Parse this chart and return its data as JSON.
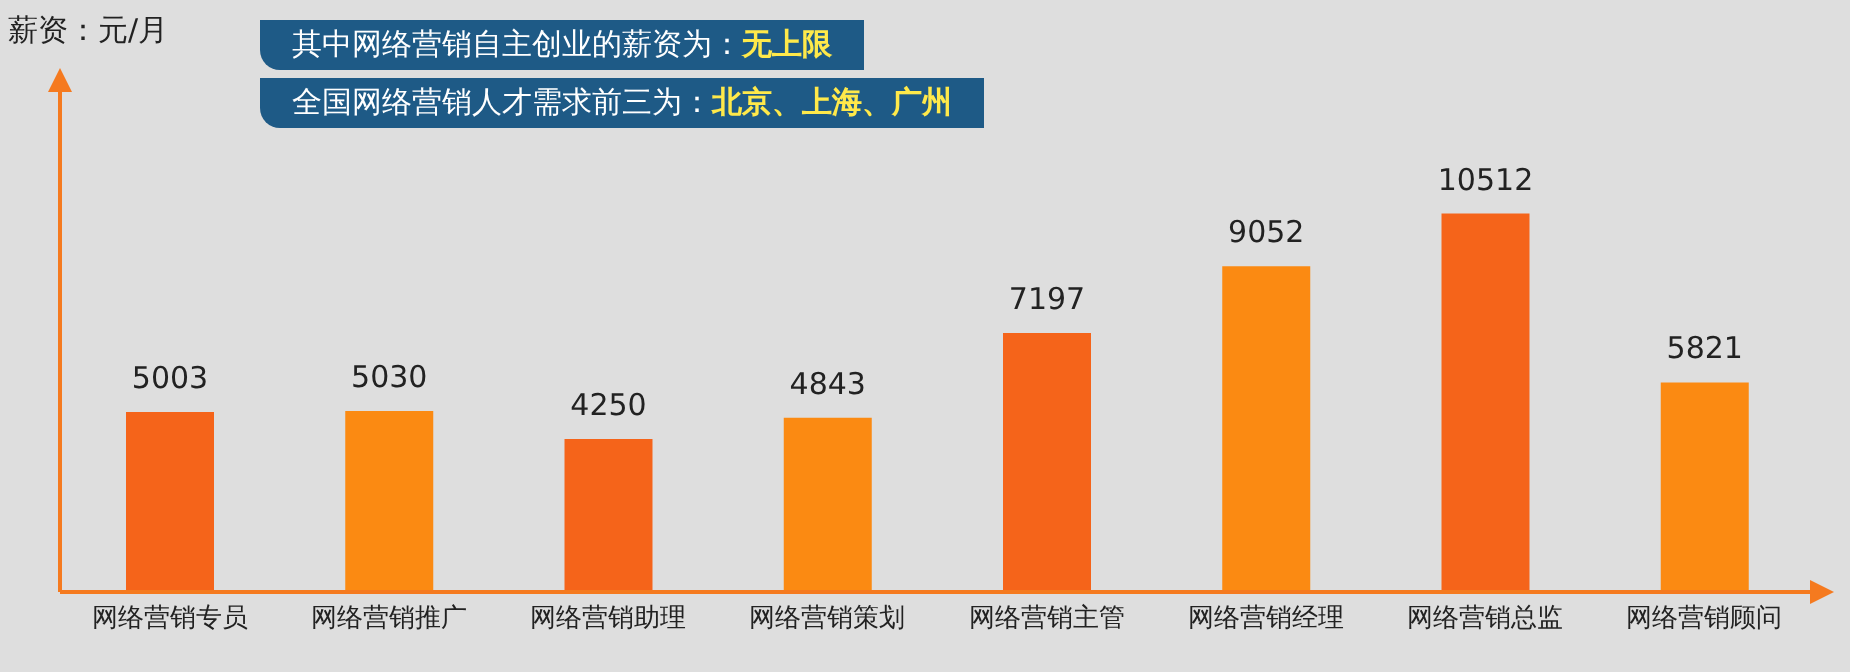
{
  "chart_data": {
    "type": "bar",
    "ylabel": "薪资：元/月",
    "annotations": [
      "其中网络营销自主创业的薪资为：无上限",
      "全国网络营销人才需求前三为：北京、上海、广州"
    ],
    "categories": [
      "网络营销专员",
      "网络营销推广",
      "网络营销助理",
      "网络营销策划",
      "网络营销主管",
      "网络营销经理",
      "网络营销总监",
      "网络营销顾问"
    ],
    "values": [
      5003,
      5030,
      4250,
      4843,
      7197,
      9052,
      10512,
      5821
    ],
    "colors": [
      "#f5641a",
      "#fb8a12",
      "#f5641a",
      "#fb8a12",
      "#f5641a",
      "#fb8a12",
      "#f5641a",
      "#fb8a12"
    ],
    "ylim": [
      0,
      14000
    ],
    "data_labels": true,
    "tick_labels": "x",
    "grid": false,
    "legend": false
  }
}
